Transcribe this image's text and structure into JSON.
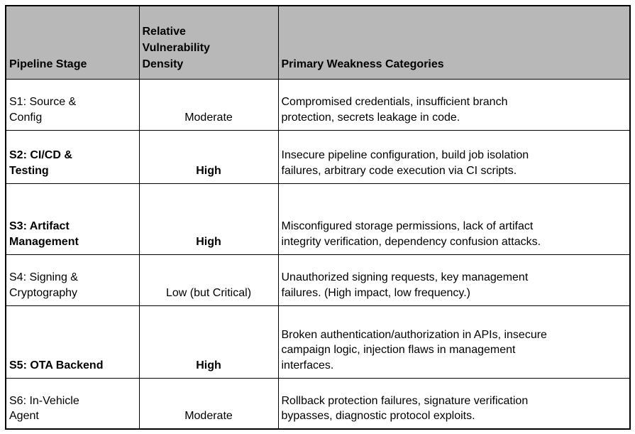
{
  "table": {
    "colors": {
      "header_bg": "#b8b8b8",
      "border": "#000000",
      "text": "#000000",
      "background": "#ffffff"
    },
    "columns": [
      {
        "label": "Pipeline Stage"
      },
      {
        "label": [
          "Relative",
          "Vulnerability",
          "Density"
        ]
      },
      {
        "label": "Primary Weakness Categories"
      }
    ],
    "rows": [
      {
        "stage": [
          "S1: Source &",
          "Config"
        ],
        "density": "Moderate",
        "bold": false,
        "weaknesses": [
          "Compromised credentials, insufficient branch",
          "protection, secrets leakage in code."
        ]
      },
      {
        "stage": [
          "S2: CI/CD &",
          "Testing"
        ],
        "density": "High",
        "bold": true,
        "weaknesses": [
          "Insecure pipeline configuration, build job isolation",
          "failures, arbitrary code execution via CI scripts."
        ]
      },
      {
        "stage": [
          "S3: Artifact",
          "Management"
        ],
        "density": "High",
        "bold": true,
        "weaknesses": [
          "Misconfigured storage permissions, lack of artifact",
          "integrity verification, dependency confusion attacks."
        ]
      },
      {
        "stage": [
          "S4: Signing &",
          "Cryptography"
        ],
        "density": "Low (but Critical)",
        "bold": false,
        "weaknesses": [
          "Unauthorized signing requests, key management",
          "failures. (High impact, low frequency.)"
        ]
      },
      {
        "stage": [
          "S5: OTA Backend"
        ],
        "density": "High",
        "bold": true,
        "weaknesses": [
          "Broken authentication/authorization in APIs, insecure",
          "campaign logic, injection flaws in management",
          "interfaces."
        ]
      },
      {
        "stage": [
          "S6: In-Vehicle",
          "Agent"
        ],
        "density": "Moderate",
        "bold": false,
        "weaknesses": [
          "Rollback protection failures, signature verification",
          "bypasses, diagnostic protocol exploits."
        ]
      }
    ]
  }
}
